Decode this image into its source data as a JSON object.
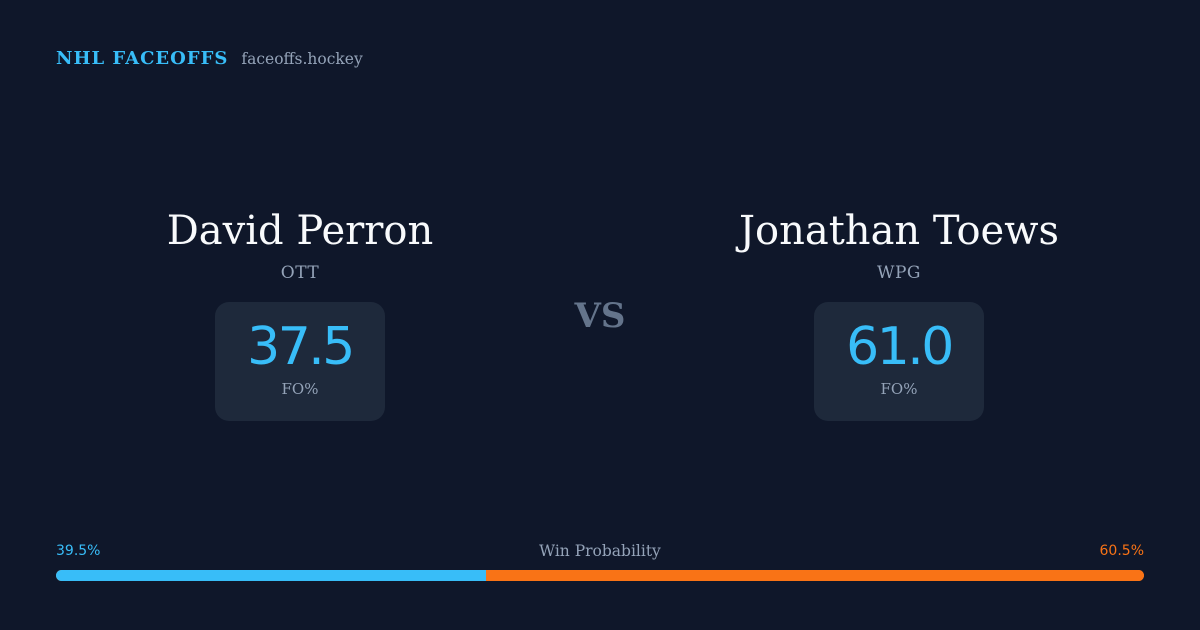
{
  "brand": {
    "name": "NHL FACEOFFS",
    "domain": "faceoffs.hockey"
  },
  "matchup": {
    "vs_label": "VS",
    "players": [
      {
        "name": "David Perron",
        "team": "OTT",
        "stat_value": "37.5",
        "stat_label": "FO%"
      },
      {
        "name": "Jonathan Toews",
        "team": "WPG",
        "stat_value": "61.0",
        "stat_label": "FO%"
      }
    ]
  },
  "win_probability": {
    "title": "Win Probability",
    "left_label": "39.5%",
    "right_label": "60.5%",
    "left_value": 39.5,
    "right_value": 60.5,
    "left_color": "#38bdf8",
    "right_color": "#f97316"
  },
  "colors": {
    "background": "#0f172a",
    "card": "#1e293b",
    "accent": "#38bdf8",
    "secondary": "#f97316",
    "muted": "#94a3b8"
  }
}
